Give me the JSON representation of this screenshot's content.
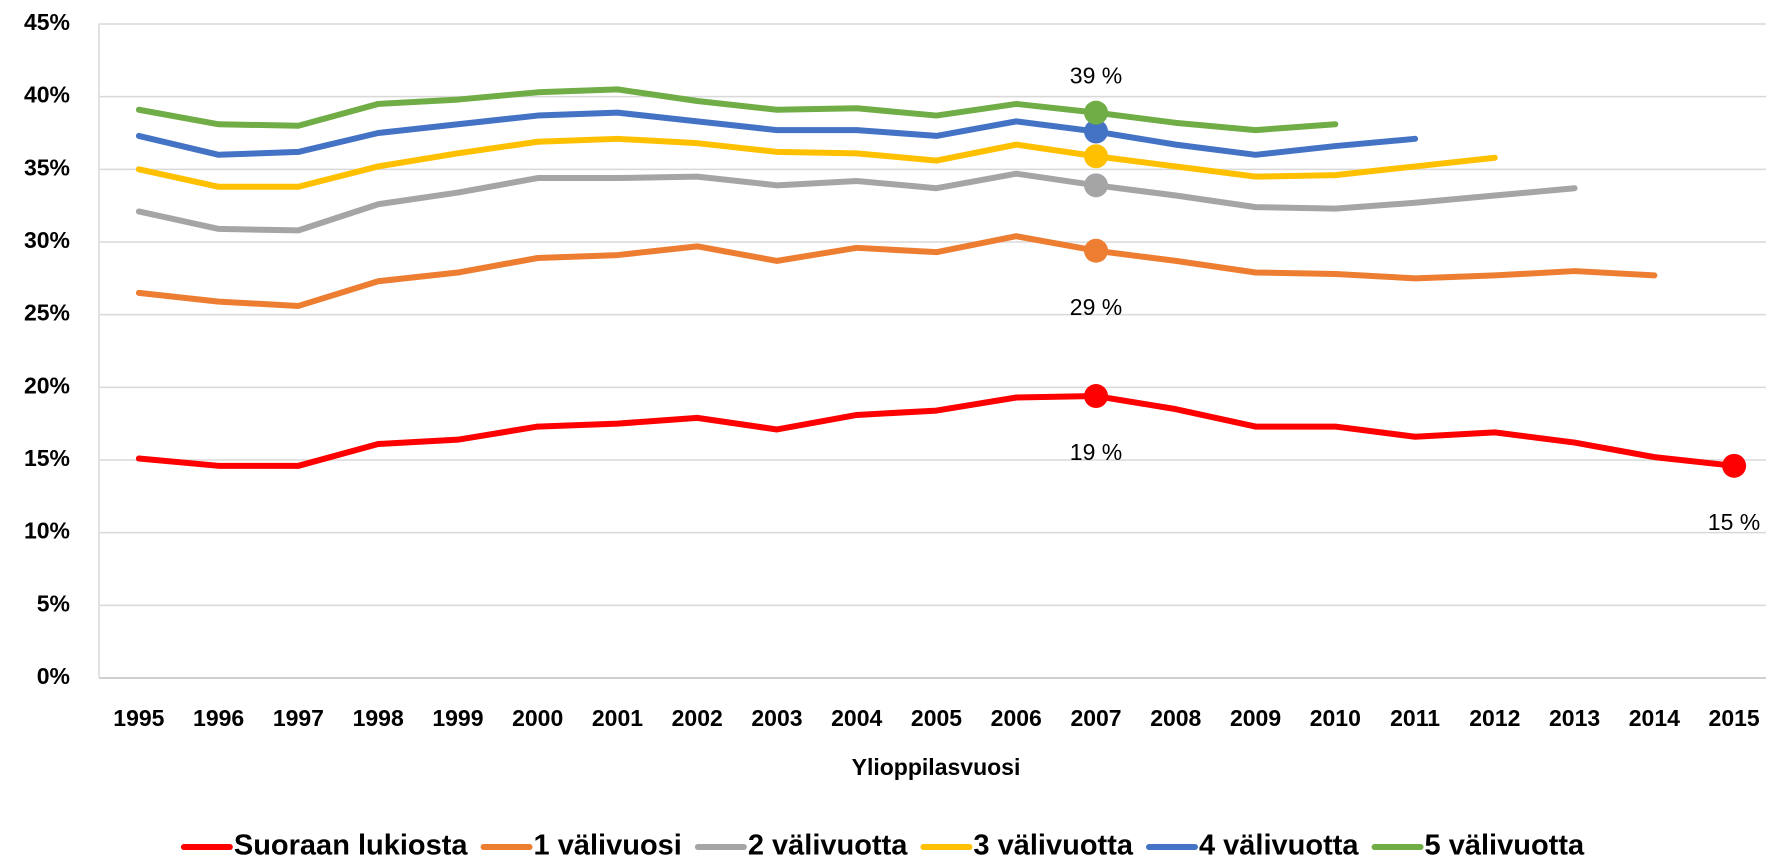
{
  "chart_data": {
    "type": "line",
    "x_label": "Ylioppilasvuosi",
    "x": [
      1995,
      1996,
      1997,
      1998,
      1999,
      2000,
      2001,
      2002,
      2003,
      2004,
      2005,
      2006,
      2007,
      2008,
      2009,
      2010,
      2011,
      2012,
      2013,
      2014,
      2015
    ],
    "xlim": [
      1994.5,
      2015.5
    ],
    "xticks": [
      1995,
      1996,
      1997,
      1998,
      1999,
      2000,
      2001,
      2002,
      2003,
      2004,
      2005,
      2006,
      2007,
      2008,
      2009,
      2010,
      2011,
      2012,
      2013,
      2014,
      2015
    ],
    "ylim": [
      0,
      45
    ],
    "yticks": [
      {
        "value": 0,
        "label": "0%"
      },
      {
        "value": 5,
        "label": "5%"
      },
      {
        "value": 10,
        "label": "10%"
      },
      {
        "value": 15,
        "label": "15%"
      },
      {
        "value": 20,
        "label": "20%"
      },
      {
        "value": 25,
        "label": "25%"
      },
      {
        "value": 30,
        "label": "30%"
      },
      {
        "value": 35,
        "label": "35%"
      },
      {
        "value": 40,
        "label": "40%"
      },
      {
        "value": 45,
        "label": "45%"
      }
    ],
    "grid": true,
    "legend": "bottom",
    "series": [
      {
        "name": "Suoraan lukiosta",
        "color": "#ff0000",
        "values": [
          15.1,
          14.6,
          14.6,
          16.1,
          16.4,
          17.3,
          17.5,
          17.9,
          17.1,
          18.1,
          18.4,
          19.3,
          19.4,
          18.5,
          17.3,
          17.3,
          16.6,
          16.9,
          16.2,
          15.2,
          14.6
        ],
        "value_labels": [
          null,
          null,
          null,
          null,
          null,
          null,
          null,
          null,
          null,
          null,
          null,
          null,
          "19 %",
          null,
          null,
          null,
          null,
          null,
          null,
          null,
          "15 %"
        ],
        "label_side": "below",
        "markers": [
          12,
          20
        ]
      },
      {
        "name": "1 välivuosi",
        "color": "#ed7d31",
        "values": [
          26.5,
          25.9,
          25.6,
          27.3,
          27.9,
          28.9,
          29.1,
          29.7,
          28.7,
          29.6,
          29.3,
          30.4,
          29.4,
          28.7,
          27.9,
          27.8,
          27.5,
          27.7,
          28.0,
          27.7,
          null
        ],
        "value_labels": [
          null,
          null,
          null,
          null,
          null,
          null,
          null,
          null,
          null,
          null,
          null,
          null,
          "29 %",
          null,
          null,
          null,
          null,
          null,
          null,
          null,
          null
        ],
        "label_side": "below",
        "markers": [
          12
        ]
      },
      {
        "name": "2 välivuotta",
        "color": "#a5a5a5",
        "values": [
          32.1,
          30.9,
          30.8,
          32.6,
          33.4,
          34.4,
          34.4,
          34.5,
          33.9,
          34.2,
          33.7,
          34.7,
          33.9,
          33.2,
          32.4,
          32.3,
          32.7,
          33.2,
          33.7,
          null,
          null
        ],
        "markers": [
          12
        ]
      },
      {
        "name": "3 välivuotta",
        "color": "#ffc000",
        "values": [
          35.0,
          33.8,
          33.8,
          35.2,
          36.1,
          36.9,
          37.1,
          36.8,
          36.2,
          36.1,
          35.6,
          36.7,
          35.9,
          35.2,
          34.5,
          34.6,
          35.2,
          35.8,
          null,
          null,
          null
        ],
        "markers": [
          12
        ]
      },
      {
        "name": "4 välivuotta",
        "color": "#4472c4",
        "values": [
          37.3,
          36.0,
          36.2,
          37.5,
          38.1,
          38.7,
          38.9,
          38.3,
          37.7,
          37.7,
          37.3,
          38.3,
          37.6,
          36.7,
          36.0,
          36.6,
          37.1,
          null,
          null,
          null,
          null
        ],
        "markers": [
          12
        ]
      },
      {
        "name": "5 välivuotta",
        "color": "#70ad47",
        "values": [
          39.1,
          38.1,
          38.0,
          39.5,
          39.8,
          40.3,
          40.5,
          39.7,
          39.1,
          39.2,
          38.7,
          39.5,
          38.9,
          38.2,
          37.7,
          38.1,
          null,
          null,
          null,
          null,
          null
        ],
        "value_labels": [
          null,
          null,
          null,
          null,
          null,
          null,
          null,
          null,
          null,
          null,
          null,
          null,
          "39 %",
          null,
          null,
          null,
          null,
          null,
          null,
          null,
          null
        ],
        "label_side": "above",
        "markers": [
          12
        ]
      }
    ]
  }
}
